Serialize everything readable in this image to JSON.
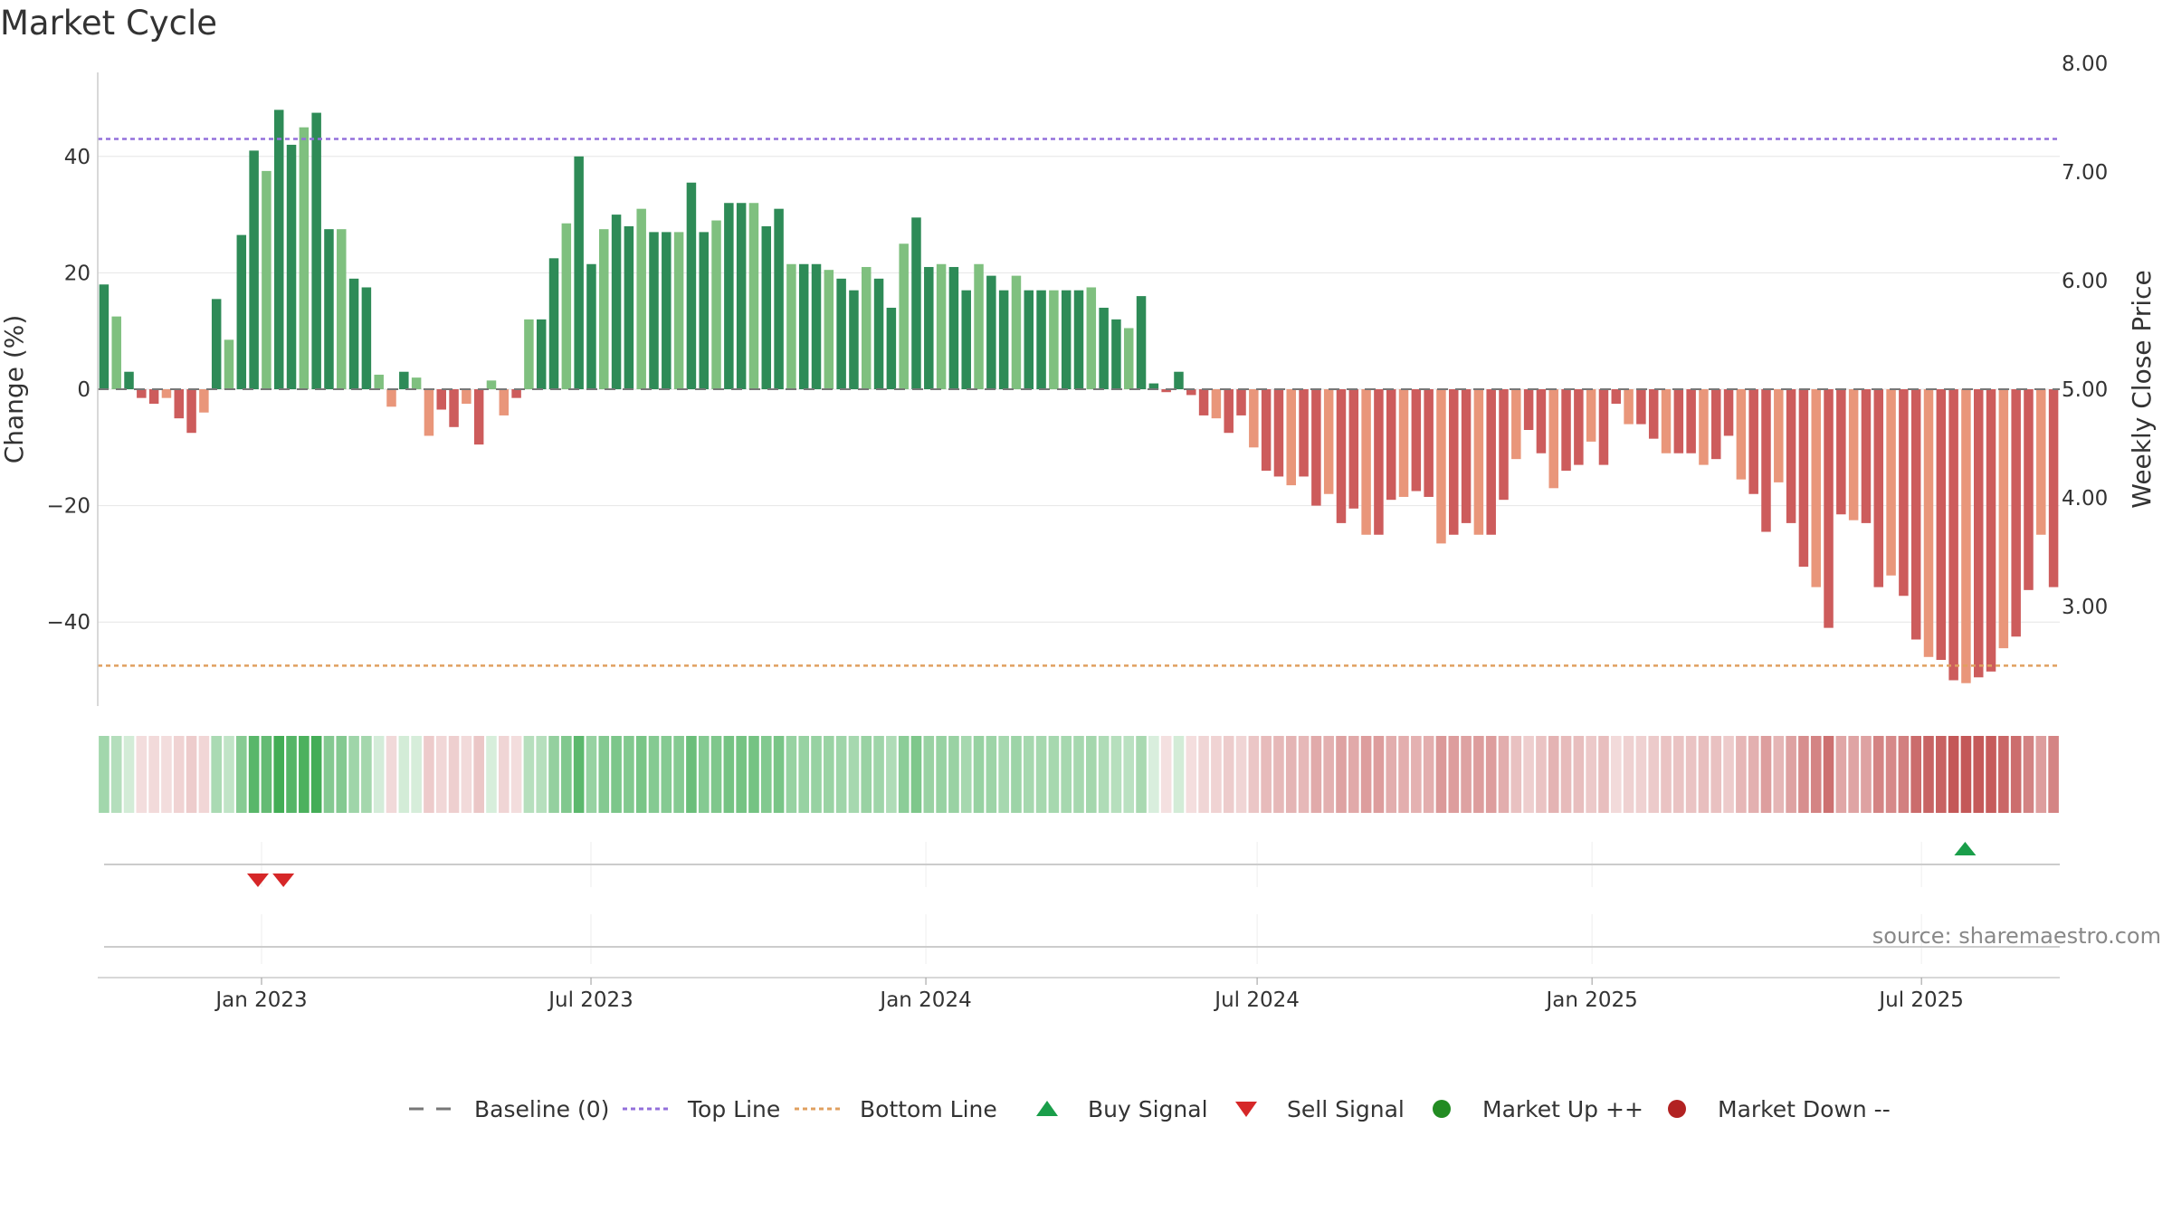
{
  "chart_data": {
    "type": "bar",
    "title": "Market Cycle",
    "ylabel": "Change (%)",
    "y2label": "Weekly Close Price",
    "ylim": [
      -55,
      55
    ],
    "yticks": [
      -40,
      -20,
      0,
      20,
      40
    ],
    "y2lim": [
      2.2,
      8.5
    ],
    "y2ticks": [
      "3.00",
      "4.00",
      "5.00",
      "6.00",
      "7.00",
      "8.00"
    ],
    "x_start": "2022-10-03",
    "x_end": "2025-09-15",
    "xticks": [
      {
        "label": "Jan 2023",
        "date": "2023-01-01"
      },
      {
        "label": "Jul 2023",
        "date": "2023-07-01"
      },
      {
        "label": "Jan 2024",
        "date": "2024-01-01"
      },
      {
        "label": "Jul 2024",
        "date": "2024-07-01"
      },
      {
        "label": "Jan 2025",
        "date": "2025-01-01"
      },
      {
        "label": "Jul 2025",
        "date": "2025-07-01"
      }
    ],
    "top_line": 43,
    "bottom_line": -47.5,
    "values": [
      18,
      12.5,
      3,
      -1.5,
      -2.5,
      -1.5,
      -5,
      -7.5,
      -4,
      15.5,
      8.5,
      26.5,
      41,
      37.5,
      48,
      42,
      45,
      47.5,
      27.5,
      27.5,
      19,
      17.5,
      2.5,
      -3,
      3,
      2,
      -8,
      -3.5,
      -6.5,
      -2.5,
      -9.5,
      1.5,
      -4.5,
      -1.5,
      12,
      12,
      22.5,
      28.5,
      40,
      21.5,
      27.5,
      30,
      28,
      31,
      27,
      27,
      27,
      35.5,
      27,
      29,
      32,
      32,
      32,
      28,
      31,
      21.5,
      21.5,
      21.5,
      20.5,
      19,
      17,
      21,
      19,
      14,
      25,
      29.5,
      21,
      21.5,
      21,
      17,
      21.5,
      19.5,
      17,
      19.5,
      17,
      17,
      17,
      17,
      17,
      17.5,
      14,
      12,
      10.5,
      16,
      1,
      -0.5,
      3,
      -1,
      -4.5,
      -5,
      -7.5,
      -4.5,
      -10,
      -14,
      -15,
      -16.5,
      -15,
      -20,
      -18,
      -23,
      -20.5,
      -25,
      -25,
      -19,
      -18.5,
      -17.5,
      -18.5,
      -26.5,
      -25,
      -23,
      -25,
      -25,
      -19,
      -12,
      -7,
      -11,
      -17,
      -14,
      -13,
      -9,
      -13,
      -2.5,
      -6,
      -6,
      -8.5,
      -11,
      -11,
      -11,
      -13,
      -12,
      -8,
      -15.5,
      -18,
      -24.5,
      -16,
      -23,
      -30.5,
      -34,
      -41,
      -21.5,
      -22.5,
      -23,
      -34,
      -32,
      -35.5,
      -43,
      -46,
      -46.5,
      -50,
      -50.5,
      -49.5,
      -48.5,
      -44.5,
      -42.5,
      -34.5,
      -25,
      -34
    ],
    "sell_signals": [
      "2022-12-30",
      "2023-01-13"
    ],
    "buy_signals": [
      "2025-07-25"
    ],
    "source": "source: sharemaestro.com",
    "legend": [
      "Baseline (0)",
      "Top Line",
      "Bottom Line",
      "Buy Signal",
      "Sell Signal",
      "Market Up ++",
      "Market Down --"
    ],
    "legend_position": "bottom-center",
    "colors": {
      "up_dark": "#2e8b57",
      "up_light": "#7fc07f",
      "down_dark": "#cd5c5c",
      "down_light": "#e9967a",
      "top_line": "#9370db",
      "bottom_line": "#e0a060",
      "buy": "#1a9e4a",
      "sell": "#d62728",
      "market_up": "#228b22",
      "market_down": "#b22222",
      "baseline": "#777777"
    }
  }
}
